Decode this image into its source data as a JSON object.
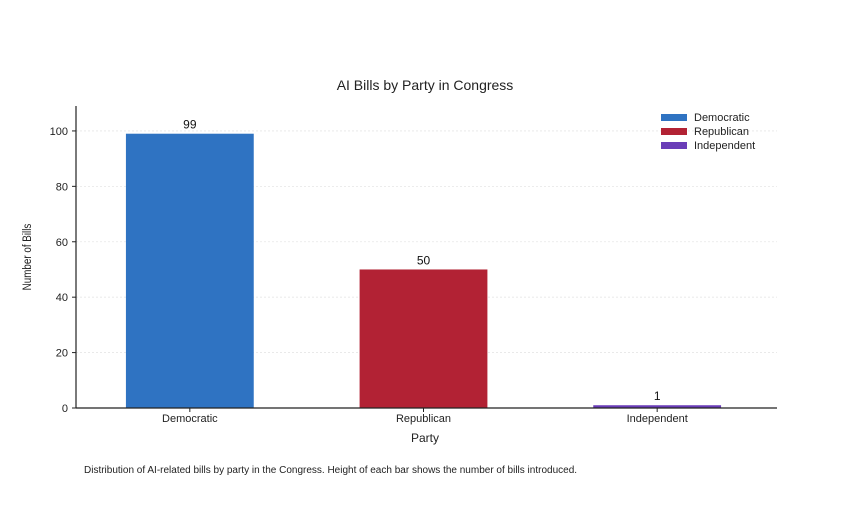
{
  "chart_data": {
    "type": "bar",
    "title": "AI Bills by Party in Congress",
    "xlabel": "Party",
    "ylabel": "Number of Bills",
    "categories": [
      "Democratic",
      "Republican",
      "Independent"
    ],
    "values": [
      99,
      50,
      1
    ],
    "colors": [
      "#2f73c2",
      "#b22234",
      "#6a3db8"
    ],
    "ylim": [
      0,
      109
    ],
    "yticks": [
      0,
      20,
      40,
      60,
      80,
      100
    ],
    "grid": true,
    "legend": {
      "placement": "top-right",
      "entries": [
        {
          "label": "Democratic",
          "color": "#2f73c2"
        },
        {
          "label": "Republican",
          "color": "#b22234"
        },
        {
          "label": "Independent",
          "color": "#6a3db8"
        }
      ]
    }
  },
  "caption": "Distribution of AI-related bills by party in the Congress. Height of each bar shows the number of bills introduced."
}
